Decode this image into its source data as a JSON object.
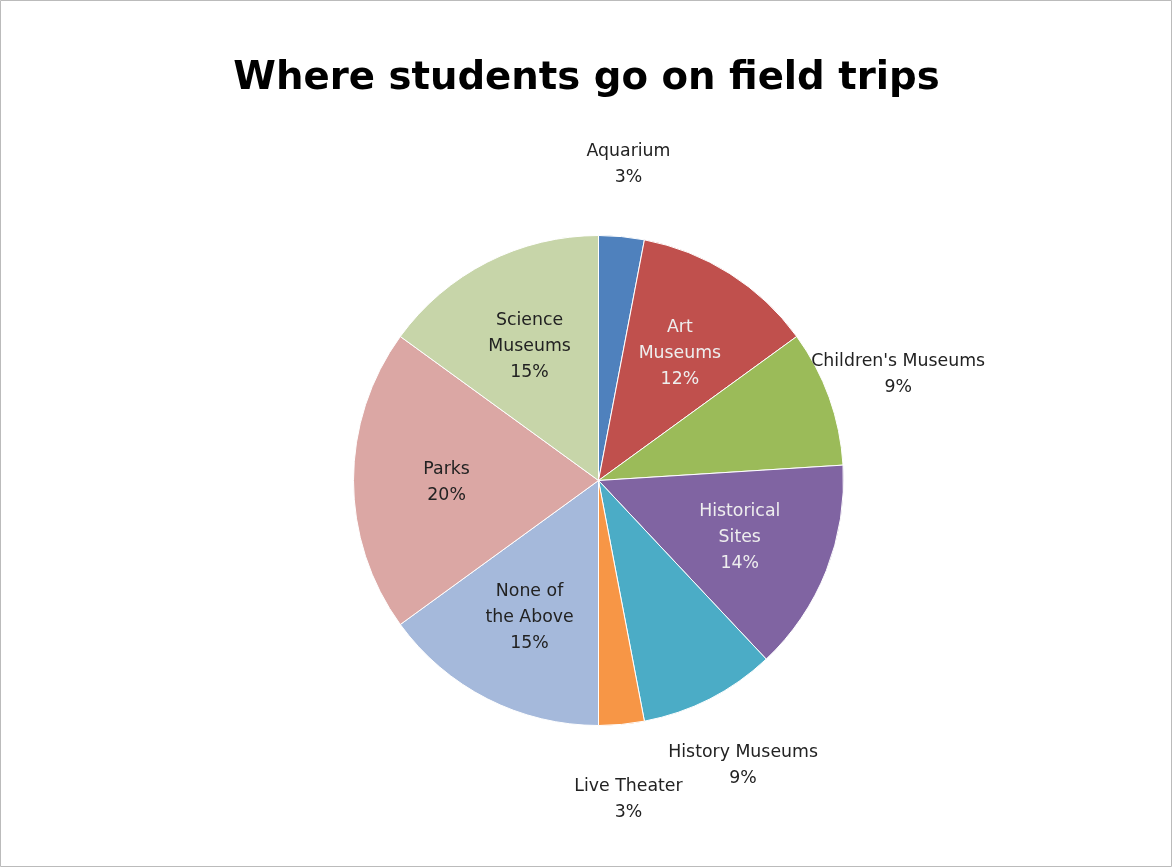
{
  "chart_data": {
    "type": "pie",
    "title": "Where students go on field trips",
    "categories": [
      "Aquarium",
      "Art Museums",
      "Children's Museums",
      "Historical Sites",
      "History Museums",
      "Live Theater",
      "None of the Above",
      "Parks",
      "Science Museums"
    ],
    "values": [
      3,
      12,
      9,
      14,
      9,
      3,
      15,
      20,
      15
    ],
    "value_labels": [
      "3%",
      "12%",
      "9%",
      "14%",
      "9%",
      "3%",
      "15%",
      "20%",
      "15%"
    ],
    "colors": [
      "#4f81bd",
      "#c0504d",
      "#9bbb59",
      "#8064a2",
      "#4bacc6",
      "#f79646",
      "#a5b9db",
      "#dba7a4",
      "#c7d5a9"
    ]
  }
}
